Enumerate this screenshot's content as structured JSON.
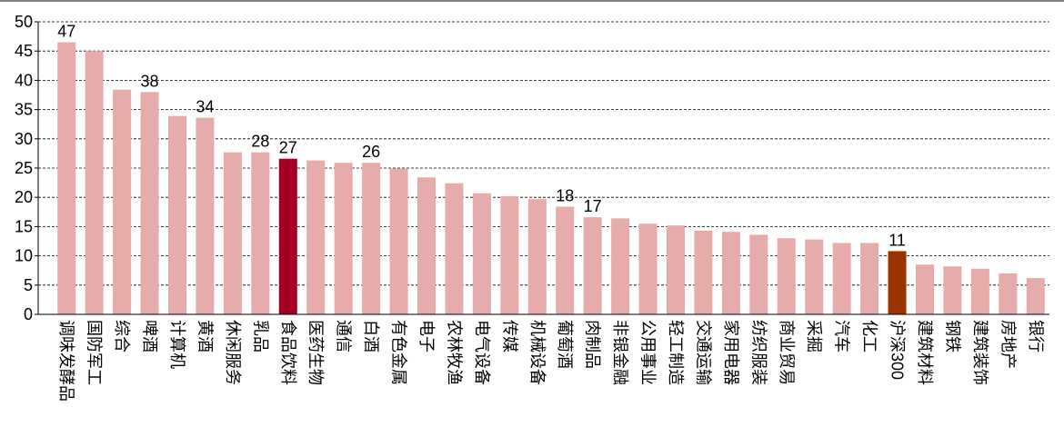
{
  "chart_data": {
    "type": "bar",
    "categories": [
      "调味发酵品",
      "国防军工",
      "综合",
      "啤酒",
      "计算机",
      "黄酒",
      "休闲服务",
      "乳品",
      "食品饮料",
      "医药生物",
      "通信",
      "白酒",
      "有色金属",
      "电子",
      "农林牧渔",
      "电气设备",
      "传媒",
      "机械设备",
      "葡萄酒",
      "肉制品",
      "非银金融",
      "公用事业",
      "轻工制造",
      "交通运输",
      "家用电器",
      "纺织服装",
      "商业贸易",
      "采掘",
      "汽车",
      "化工",
      "沪深300",
      "建筑材料",
      "钢铁",
      "建筑装饰",
      "房地产",
      "银行"
    ],
    "values": [
      46.5,
      45.0,
      38.4,
      38.0,
      33.9,
      33.6,
      27.7,
      27.7,
      26.6,
      26.3,
      25.9,
      25.9,
      24.9,
      23.4,
      22.4,
      20.7,
      20.2,
      19.7,
      18.4,
      16.6,
      16.4,
      15.5,
      15.2,
      14.3,
      14.1,
      13.6,
      13.0,
      12.8,
      12.2,
      12.2,
      10.8,
      8.5,
      8.2,
      7.8,
      7.0,
      6.2
    ],
    "value_labels": [
      "47",
      null,
      null,
      "38",
      null,
      "34",
      null,
      "28",
      "27",
      null,
      null,
      "26",
      null,
      null,
      null,
      null,
      null,
      null,
      "18",
      "17",
      null,
      null,
      null,
      null,
      null,
      null,
      null,
      null,
      null,
      null,
      "11",
      null,
      null,
      null,
      null,
      null
    ],
    "colors": [
      "#e6acac",
      "#e6acac",
      "#e6acac",
      "#e6acac",
      "#e6acac",
      "#e6acac",
      "#e6acac",
      "#e6acac",
      "#a50021",
      "#e6acac",
      "#e6acac",
      "#e6acac",
      "#e6acac",
      "#e6acac",
      "#e6acac",
      "#e6acac",
      "#e6acac",
      "#e6acac",
      "#e6acac",
      "#e6acac",
      "#e6acac",
      "#e6acac",
      "#e6acac",
      "#e6acac",
      "#e6acac",
      "#e6acac",
      "#e6acac",
      "#e6acac",
      "#e6acac",
      "#e6acac",
      "#993300",
      "#e6acac",
      "#e6acac",
      "#e6acac",
      "#e6acac",
      "#e6acac"
    ],
    "ylim": [
      0,
      50
    ],
    "yticks": [
      0,
      5,
      10,
      15,
      20,
      25,
      30,
      35,
      40,
      45,
      50
    ],
    "grid": true
  }
}
